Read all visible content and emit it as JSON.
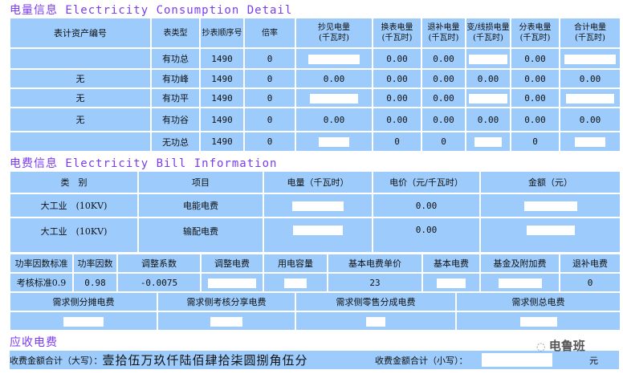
{
  "consumption": {
    "title": "电量信息 Electricity Consumption Detail",
    "headers": [
      "表计资产编号",
      "表类型",
      "抄表顺序号",
      "倍率",
      "抄见电量\n(千瓦时)",
      "换表电量\n(千瓦时)",
      "退补电量\n(千瓦时)",
      "变/线损电量\n(千瓦时)",
      "分表电量\n(千瓦时)",
      "合计电量\n(千瓦时)"
    ],
    "rows": [
      {
        "asset": "",
        "type": "有功总",
        "seq": "1490",
        "rate": "0",
        "read": "",
        "swap": "0.00",
        "refund": "0.00",
        "loss": "",
        "sub": "0.00",
        "total": ""
      },
      {
        "asset": "无",
        "type": "有功峰",
        "seq": "1490",
        "rate": "0",
        "read": "0.00",
        "swap": "0.00",
        "refund": "0.00",
        "loss": "0.00",
        "sub": "0.00",
        "total": "0.00"
      },
      {
        "asset": "无",
        "type": "有功平",
        "seq": "1490",
        "rate": "0",
        "read": "",
        "swap": "0.00",
        "refund": "0.00",
        "loss": "",
        "sub": "0.00",
        "total": ""
      },
      {
        "asset": "无",
        "type": "有功谷",
        "seq": "1490",
        "rate": "0",
        "read": "0.00",
        "swap": "0.00",
        "refund": "0.00",
        "loss": "0.00",
        "sub": "0.00",
        "total": "0.00"
      }
    ],
    "reactive": {
      "type": "无功总",
      "seq": "1490",
      "rate": "0",
      "swap": "0",
      "refund": "0",
      "sub": "0"
    }
  },
  "bill": {
    "title": "电费信息 Electricity Bill Information",
    "headers": [
      "类　别",
      "项目",
      "电量（千瓦时）",
      "电价（元/千瓦时）",
      "金额（元）"
    ],
    "rows": [
      {
        "category": "大工业　(10KV)",
        "item": "电能电费",
        "price": "0.00"
      },
      {
        "category": "大工业　(10KV)",
        "item": "输配电费",
        "price": "0.00"
      }
    ],
    "pf_headers": [
      "功率因数标准",
      "功率因数",
      "调整系数",
      "调整电费",
      "用电容量",
      "基本电费单价",
      "基本电费",
      "基金及附加费",
      "退补电费"
    ],
    "pf_values": {
      "standard": "考核标准0.9",
      "factor": "0.98",
      "coef": "-0.0075",
      "unit_price": "23",
      "refund": "0"
    },
    "demand_headers": [
      "需求侧分摊电费",
      "需求侧考核分享电费",
      "需求侧零售分成电费",
      "需求侧总电费"
    ]
  },
  "receivable": {
    "title": "应收电费",
    "upper_label": "收费金额合计（大写）：",
    "upper_value": "壹拾伍万玖仟陆佰肆拾柒圆捌角伍分",
    "lower_label": "收费金额合计（小写）：",
    "unit": "元"
  },
  "watermark": "电鲁班"
}
